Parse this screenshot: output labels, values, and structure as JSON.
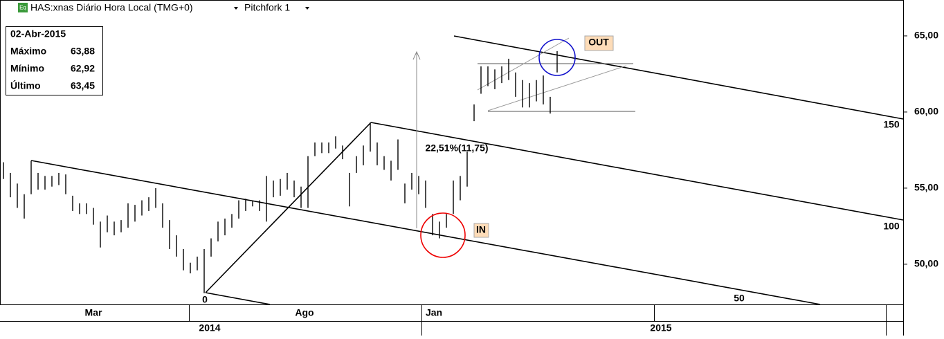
{
  "chart_data": {
    "type": "ohlc",
    "title": "HAS:xnas Diário Hora Local (TMG+0)",
    "study": "Pitchfork 1",
    "badge": "Eq",
    "info_box": {
      "date": "02-Abr-2015",
      "rows": [
        [
          "Máximo",
          "63,88"
        ],
        [
          "Mínimo",
          "62,92"
        ],
        [
          "Último",
          "63,45"
        ]
      ]
    },
    "high": [
      56.7,
      56.0,
      55.3,
      54.6,
      56.8,
      56.0,
      55.8,
      55.8,
      56.0,
      55.9,
      54.5,
      54.0,
      54.0,
      53.7,
      52.8,
      53.2,
      52.8,
      52.9,
      54.0,
      53.9,
      54.2,
      54.4,
      55.0,
      54.0,
      52.9,
      51.9,
      51.0,
      50.1,
      50.5,
      51.0,
      51.7,
      52.8,
      53.0,
      53.3,
      54.2,
      54.3,
      54.2,
      54.2,
      55.8,
      55.5,
      55.6,
      56.0,
      55.5,
      55.1,
      57.1,
      58.0,
      58.0,
      58.0,
      58.4,
      57.8,
      56.0,
      57.1,
      57.8,
      59.3,
      58.0,
      57.1,
      56.8,
      58.2,
      55.3,
      56.0,
      55.8,
      55.5,
      53.3,
      52.8,
      53.3,
      55.5,
      55.8,
      57.4,
      60.5,
      63.0,
      63.0,
      62.8,
      63.0,
      63.5,
      62.6,
      62.1,
      61.9,
      62.1,
      62.4,
      61.0,
      64.0
    ],
    "low": [
      55.6,
      54.4,
      53.7,
      53.0,
      54.6,
      54.9,
      54.9,
      55.1,
      55.2,
      54.6,
      53.5,
      53.3,
      53.3,
      52.6,
      51.1,
      52.1,
      51.9,
      52.1,
      52.4,
      52.8,
      53.2,
      53.5,
      53.7,
      52.4,
      51.0,
      50.5,
      49.6,
      49.4,
      49.6,
      48.1,
      50.5,
      51.5,
      51.9,
      52.4,
      53.0,
      53.5,
      53.8,
      53.5,
      52.8,
      54.4,
      54.5,
      54.9,
      54.4,
      53.7,
      53.7,
      57.1,
      57.3,
      57.3,
      57.6,
      56.9,
      53.8,
      56.0,
      56.5,
      57.4,
      56.5,
      56.2,
      55.5,
      56.2,
      54.0,
      54.9,
      54.6,
      53.7,
      51.9,
      51.7,
      52.4,
      53.3,
      54.2,
      55.1,
      59.4,
      61.2,
      61.7,
      61.5,
      61.9,
      62.1,
      61.0,
      60.3,
      60.3,
      60.7,
      60.5,
      59.9,
      62.6
    ],
    "xlim": [
      -0.5,
      130
    ],
    "ylim": [
      47.36,
      67.36
    ],
    "yticks": [
      {
        "value": 50,
        "label": "50,00"
      },
      {
        "value": 55,
        "label": "55,00"
      },
      {
        "value": 60,
        "label": "60,00"
      },
      {
        "value": 65,
        "label": "65,00"
      }
    ],
    "color": "#000000",
    "months": [
      "Mar",
      "Ago",
      "Jan"
    ],
    "years": [
      "2014",
      "2015"
    ],
    "pitchfork_labels": [
      "0",
      "50",
      "100",
      "150"
    ],
    "annotations": {
      "measure": "22,51%(11,75)",
      "in": "IN",
      "out": "OUT"
    }
  }
}
